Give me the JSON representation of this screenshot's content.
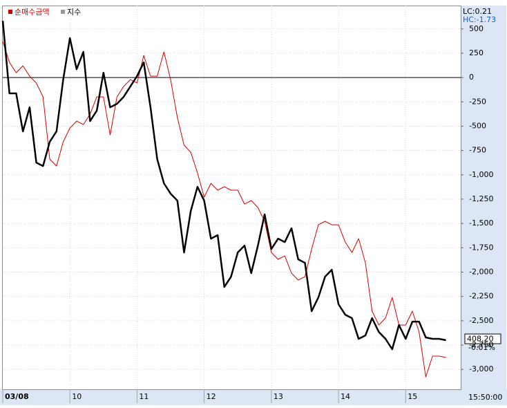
{
  "chart_data": {
    "type": "line",
    "legend": [
      "순매수금액",
      "지수"
    ],
    "info": {
      "lc": "LC:0.21",
      "hc": "HC:-1.73",
      "last": "408.20",
      "change": "-0.01%",
      "time": "15:50:00"
    },
    "x": [
      0,
      0.1,
      0.2,
      0.3,
      0.4,
      0.5,
      0.6,
      0.7,
      0.8,
      0.9,
      1,
      1.1,
      1.2,
      1.3,
      1.4,
      1.5,
      1.6,
      1.7,
      1.8,
      1.9,
      2,
      2.1,
      2.2,
      2.3,
      2.4,
      2.5,
      2.6,
      2.7,
      2.8,
      2.9,
      3,
      3.1,
      3.2,
      3.3,
      3.4,
      3.5,
      3.6,
      3.7,
      3.8,
      3.9,
      4,
      4.1,
      4.2,
      4.3,
      4.4,
      4.5,
      4.6,
      4.7,
      4.8,
      4.9,
      5,
      5.1,
      5.2,
      5.3,
      5.4,
      5.5,
      5.6,
      5.7,
      5.8,
      5.9,
      6,
      6.1,
      6.2,
      6.3,
      6.4,
      6.5,
      6.6
    ],
    "series": [
      {
        "name": "순매수금액",
        "color": "#d40000",
        "width": 1,
        "values": [
          369,
          156,
          50,
          121,
          14,
          -57,
          -199,
          -839,
          -910,
          -661,
          -519,
          -448,
          -483,
          -377,
          -199,
          -199,
          -590,
          -199,
          -92,
          -21,
          -57,
          227,
          14,
          14,
          263,
          -21,
          -412,
          -696,
          -768,
          -981,
          -1230,
          -1087,
          -1158,
          -1123,
          -1158,
          -1158,
          -1301,
          -1265,
          -1336,
          -1478,
          -1798,
          -1869,
          -1834,
          -2011,
          -2082,
          -2047,
          -1763,
          -1514,
          -1478,
          -1514,
          -1514,
          -1692,
          -1798,
          -1656,
          -1905,
          -2402,
          -2544,
          -2473,
          -2260,
          -2544,
          -2544,
          -2402,
          -2615,
          -3077,
          -2864,
          -2864,
          -2878
        ]
      },
      {
        "name": "지수",
        "color": "#000000",
        "width": 2.5,
        "values": [
          583,
          -163,
          -163,
          -554,
          -306,
          -874,
          -910,
          -661,
          -554,
          -21,
          405,
          85,
          263,
          -448,
          -341,
          50,
          -306,
          -270,
          -199,
          -92,
          14,
          156,
          -306,
          -839,
          -1087,
          -1194,
          -1265,
          -1798,
          -1372,
          -1123,
          -1265,
          -1656,
          -1620,
          -2153,
          -2047,
          -1798,
          -1727,
          -2011,
          -1727,
          -1407,
          -1763,
          -1656,
          -1692,
          -1549,
          -1869,
          -1905,
          -2402,
          -2260,
          -2047,
          -1976,
          -2331,
          -2438,
          -2473,
          -2686,
          -2651,
          -2473,
          -2615,
          -2686,
          -2793,
          -2544,
          -2686,
          -2509,
          -2509,
          -2672,
          -2686,
          -2686,
          -2700
        ]
      }
    ],
    "xlim": [
      0,
      6.82
    ],
    "xticks": [
      {
        "value": 0,
        "label": "03/08"
      },
      {
        "value": 1,
        "label": "10"
      },
      {
        "value": 2,
        "label": "11"
      },
      {
        "value": 3,
        "label": "12"
      },
      {
        "value": 4,
        "label": "13"
      },
      {
        "value": 5,
        "label": "14"
      },
      {
        "value": 6,
        "label": "15"
      }
    ],
    "ylim": [
      -3205,
      740
    ],
    "yticks": [
      500,
      250,
      0,
      -250,
      -500,
      -750,
      {
        "value": -1000,
        "label": "-1,000"
      },
      {
        "value": -1250,
        "label": "-1,250"
      },
      {
        "value": -1500,
        "label": "-1,500"
      },
      {
        "value": -1750,
        "label": "-1,750"
      },
      {
        "value": -2000,
        "label": "-2,000"
      },
      {
        "value": -2250,
        "label": "-2,250"
      },
      {
        "value": -2500,
        "label": "-2,500"
      },
      {
        "value": -2750,
        "label": "-2,750"
      },
      {
        "value": -3000,
        "label": "-3,000"
      }
    ],
    "grid": true,
    "zero_line": true
  }
}
